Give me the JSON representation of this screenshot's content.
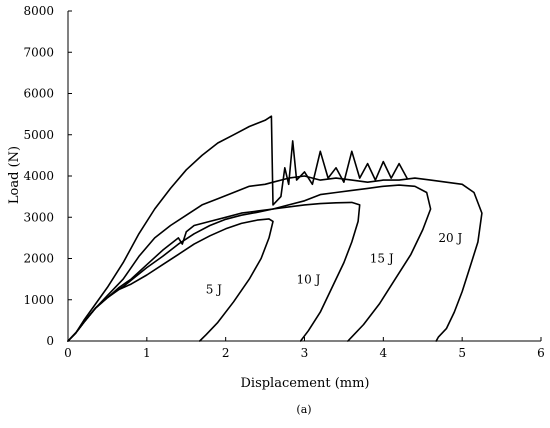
{
  "chart_data": {
    "type": "line",
    "title": "",
    "caption": "(a)",
    "xlabel": "Displacement (mm)",
    "ylabel": "Load (N)",
    "xlim": [
      0,
      6
    ],
    "ylim": [
      0,
      8000
    ],
    "xticks": [
      0,
      1,
      2,
      3,
      4,
      5,
      6
    ],
    "yticks": [
      0,
      1000,
      2000,
      3000,
      4000,
      5000,
      6000,
      7000,
      8000
    ],
    "grid": false,
    "legend": "none",
    "line_color": "#000000",
    "series": [
      {
        "label": "5 J",
        "x": [
          0,
          0.1,
          0.2,
          0.35,
          0.5,
          0.65,
          0.8,
          1.0,
          1.2,
          1.4,
          1.6,
          1.8,
          2.0,
          2.2,
          2.4,
          2.55,
          2.6,
          2.55,
          2.45,
          2.3,
          2.1,
          1.9,
          1.75,
          1.67
        ],
        "y": [
          0,
          200,
          450,
          800,
          1050,
          1250,
          1380,
          1600,
          1850,
          2100,
          2350,
          2550,
          2720,
          2850,
          2930,
          2960,
          2900,
          2500,
          2000,
          1500,
          950,
          450,
          150,
          0
        ]
      },
      {
        "label": "10 J",
        "x": [
          0,
          0.1,
          0.2,
          0.35,
          0.5,
          0.6,
          0.7,
          0.85,
          1.0,
          1.2,
          1.4,
          1.6,
          1.8,
          2.0,
          2.2,
          2.4,
          2.6,
          2.8,
          3.0,
          3.2,
          3.4,
          3.6,
          3.7,
          3.68,
          3.6,
          3.5,
          3.35,
          3.2,
          3.05,
          2.95
        ],
        "y": [
          0,
          200,
          450,
          800,
          1050,
          1200,
          1320,
          1550,
          1780,
          2050,
          2350,
          2600,
          2800,
          2950,
          3050,
          3120,
          3200,
          3250,
          3300,
          3330,
          3350,
          3360,
          3300,
          2900,
          2400,
          1900,
          1300,
          700,
          250,
          0
        ]
      },
      {
        "label": "15 J",
        "x": [
          0,
          0.1,
          0.2,
          0.35,
          0.5,
          0.65,
          0.8,
          1.0,
          1.2,
          1.4,
          1.45,
          1.5,
          1.6,
          1.8,
          2.0,
          2.2,
          2.4,
          2.6,
          2.8,
          3.0,
          3.2,
          3.4,
          3.6,
          3.8,
          4.0,
          4.2,
          4.4,
          4.55,
          4.6,
          4.5,
          4.35,
          4.15,
          3.95,
          3.75,
          3.6,
          3.55
        ],
        "y": [
          0,
          200,
          450,
          800,
          1050,
          1300,
          1500,
          1850,
          2200,
          2500,
          2350,
          2650,
          2800,
          2900,
          3000,
          3100,
          3150,
          3200,
          3300,
          3400,
          3550,
          3600,
          3650,
          3700,
          3750,
          3780,
          3750,
          3600,
          3200,
          2700,
          2100,
          1500,
          900,
          400,
          100,
          0
        ]
      },
      {
        "label": "20 J",
        "x": [
          0,
          0.1,
          0.2,
          0.35,
          0.5,
          0.7,
          0.9,
          1.1,
          1.3,
          1.5,
          1.7,
          1.9,
          2.1,
          2.3,
          2.5,
          2.6,
          2.8,
          3.0,
          3.2,
          3.4,
          3.6,
          3.8,
          4.0,
          4.2,
          4.4,
          4.6,
          4.8,
          5.0,
          5.15,
          5.25,
          5.2,
          5.1,
          5.0,
          4.9,
          4.8,
          4.7,
          4.67
        ],
        "y": [
          0,
          200,
          450,
          800,
          1100,
          1500,
          2050,
          2500,
          2800,
          3050,
          3300,
          3450,
          3600,
          3750,
          3800,
          3850,
          3950,
          4000,
          3900,
          3950,
          3900,
          3850,
          3900,
          3900,
          3950,
          3900,
          3850,
          3800,
          3600,
          3100,
          2400,
          1800,
          1200,
          700,
          300,
          100,
          0
        ]
      },
      {
        "label": "",
        "x": [
          0,
          0.1,
          0.2,
          0.35,
          0.5,
          0.7,
          0.9,
          1.1,
          1.3,
          1.5,
          1.7,
          1.9,
          2.1,
          2.3,
          2.5,
          2.58,
          2.6,
          2.7,
          2.75,
          2.8,
          2.85,
          2.9,
          3.0,
          3.1,
          3.2,
          3.3,
          3.4,
          3.5,
          3.6,
          3.7,
          3.8,
          3.9,
          4.0,
          4.1,
          4.2,
          4.3
        ],
        "y": [
          0,
          200,
          500,
          900,
          1300,
          1900,
          2600,
          3200,
          3700,
          4150,
          4500,
          4800,
          5000,
          5200,
          5350,
          5450,
          3300,
          3500,
          4200,
          3800,
          4850,
          3900,
          4100,
          3800,
          4600,
          3950,
          4200,
          3850,
          4600,
          3950,
          4300,
          3900,
          4350,
          3950,
          4300,
          3950
        ]
      }
    ],
    "annotations": [
      {
        "text": "5 J",
        "x": 1.85,
        "y": 1150
      },
      {
        "text": "10 J",
        "x": 3.05,
        "y": 1400
      },
      {
        "text": "15 J",
        "x": 3.98,
        "y": 1900
      },
      {
        "text": "20 J",
        "x": 4.85,
        "y": 2400
      }
    ]
  }
}
